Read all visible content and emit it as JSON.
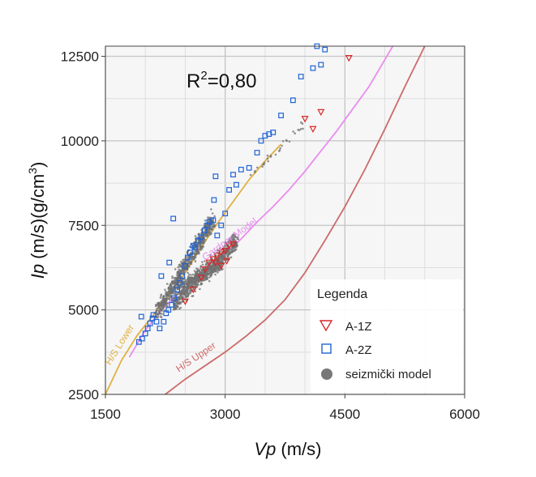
{
  "chart_data": {
    "type": "scatter",
    "xlabel_var": "Vp",
    "xlabel_unit": "(m/s)",
    "ylabel_var": "Ip",
    "ylabel_unit_a": "(m/s)(g/cm",
    "ylabel_unit_sup": "3",
    "ylabel_unit_b": ")",
    "xlim": [
      1500,
      6000
    ],
    "ylim": [
      2500,
      12800
    ],
    "x_ticks": [
      1500,
      3000,
      4500,
      6000
    ],
    "x_tick_labels": [
      "1500",
      "3000",
      "4500",
      "6000"
    ],
    "y_ticks": [
      2500,
      5000,
      7500,
      10000,
      12500
    ],
    "y_tick_labels": [
      "2500",
      "5000",
      "7500",
      "10000",
      "12500"
    ],
    "x_minor_step": 500,
    "y_minor_step": 1250,
    "grid": true,
    "annotation": {
      "r2_prefix": "R",
      "r2_sup": "2",
      "r2_value": "=0,80"
    },
    "legend": {
      "title": "Legenda",
      "placement": "lower-right",
      "entries": [
        {
          "label": "A-1Z",
          "marker": "triangle-down",
          "color": "#d62728"
        },
        {
          "label": "A-2Z",
          "marker": "square",
          "color": "#1f63d6"
        },
        {
          "label": "seizmički model",
          "marker": "circle",
          "color": "#707070"
        }
      ]
    },
    "curves": [
      {
        "name": "H/S Lower",
        "color": "#e0b040",
        "x": [
          1500,
          1700,
          1900,
          2100,
          2300,
          2500,
          2700,
          2900,
          3100,
          3300,
          3500,
          3700
        ],
        "y": [
          2500,
          3500,
          4250,
          4850,
          5450,
          6100,
          6850,
          7550,
          8200,
          8850,
          9400,
          9900
        ]
      },
      {
        "name": "Gardner Model",
        "color": "#e98cf0",
        "x": [
          1800,
          2000,
          2200,
          2400,
          2600,
          2800,
          3000,
          3200,
          3400,
          3600,
          3800,
          4000,
          4200,
          4400,
          4600,
          4800,
          5000,
          5100
        ],
        "y": [
          3600,
          4400,
          5000,
          5450,
          5850,
          6250,
          6650,
          7100,
          7600,
          8050,
          8550,
          9100,
          9700,
          10300,
          10950,
          11600,
          12400,
          12800
        ]
      },
      {
        "name": "H/S Upper",
        "color": "#cc6a6a",
        "x": [
          2250,
          2500,
          2750,
          3000,
          3250,
          3500,
          3750,
          4000,
          4250,
          4500,
          4750,
          5000,
          5250,
          5500
        ],
        "y": [
          2500,
          2950,
          3350,
          3750,
          4200,
          4700,
          5300,
          6100,
          7050,
          8050,
          9150,
          10350,
          11600,
          12800
        ]
      }
    ],
    "series": [
      {
        "name": "A-2Z",
        "marker": "square",
        "color": "#1f63d6",
        "points": [
          [
            1920,
            4050
          ],
          [
            1960,
            4150
          ],
          [
            2000,
            4300
          ],
          [
            2030,
            4450
          ],
          [
            2060,
            4600
          ],
          [
            2100,
            4850
          ],
          [
            2140,
            4650
          ],
          [
            2180,
            4450
          ],
          [
            2230,
            4650
          ],
          [
            2260,
            4900
          ],
          [
            2290,
            5000
          ],
          [
            2330,
            5150
          ],
          [
            2360,
            5350
          ],
          [
            2400,
            5600
          ],
          [
            2430,
            5800
          ],
          [
            2460,
            6000
          ],
          [
            2500,
            6300
          ],
          [
            2530,
            6550
          ],
          [
            2560,
            6700
          ],
          [
            2600,
            6900
          ],
          [
            2620,
            6850
          ],
          [
            2660,
            7050
          ],
          [
            2700,
            7150
          ],
          [
            2740,
            7350
          ],
          [
            2780,
            7500
          ],
          [
            2800,
            7600
          ],
          [
            2850,
            7650
          ],
          [
            2900,
            7200
          ],
          [
            2950,
            7500
          ],
          [
            3000,
            7850
          ],
          [
            3050,
            8550
          ],
          [
            3100,
            9000
          ],
          [
            3140,
            8700
          ],
          [
            3200,
            9150
          ],
          [
            2860,
            8250
          ],
          [
            2880,
            8950
          ],
          [
            3300,
            9200
          ],
          [
            3400,
            9650
          ],
          [
            3450,
            10000
          ],
          [
            3500,
            10150
          ],
          [
            3550,
            10200
          ],
          [
            3600,
            10250
          ],
          [
            3700,
            10750
          ],
          [
            3850,
            11200
          ],
          [
            3950,
            11900
          ],
          [
            4100,
            12150
          ],
          [
            4200,
            12250
          ],
          [
            4150,
            12800
          ],
          [
            4250,
            12700
          ],
          [
            2350,
            7700
          ],
          [
            2300,
            6400
          ],
          [
            2200,
            6000
          ],
          [
            1950,
            4800
          ],
          [
            2090,
            4750
          ]
        ]
      },
      {
        "name": "A-1Z",
        "marker": "triangle-down",
        "color": "#d62728",
        "points": [
          [
            2500,
            5250
          ],
          [
            2600,
            5600
          ],
          [
            2700,
            5950
          ],
          [
            2750,
            6200
          ],
          [
            2800,
            6400
          ],
          [
            2850,
            6500
          ],
          [
            2900,
            6600
          ],
          [
            2950,
            6700
          ],
          [
            3000,
            6750
          ],
          [
            3050,
            6900
          ],
          [
            3100,
            6950
          ],
          [
            2950,
            6300
          ],
          [
            2880,
            6400
          ],
          [
            3020,
            6450
          ],
          [
            4000,
            10650
          ],
          [
            4100,
            10350
          ],
          [
            4200,
            10850
          ],
          [
            4550,
            12450
          ]
        ]
      },
      {
        "name": "seizmički model",
        "marker": "circle",
        "color": "#707070",
        "bands": [
          {
            "x0": 2150,
            "x1": 2850,
            "y0": 4950,
            "y1": 7650,
            "spread": 380,
            "count": 700
          },
          {
            "x0": 2350,
            "x1": 3150,
            "y0": 5200,
            "y1": 7050,
            "spread": 420,
            "count": 650
          },
          {
            "x0": 2400,
            "x1": 2950,
            "y0": 5700,
            "y1": 6300,
            "spread": 260,
            "count": 250
          },
          {
            "x0": 3350,
            "x1": 4000,
            "y0": 9050,
            "y1": 10550,
            "spread": 160,
            "count": 30
          }
        ]
      }
    ]
  }
}
